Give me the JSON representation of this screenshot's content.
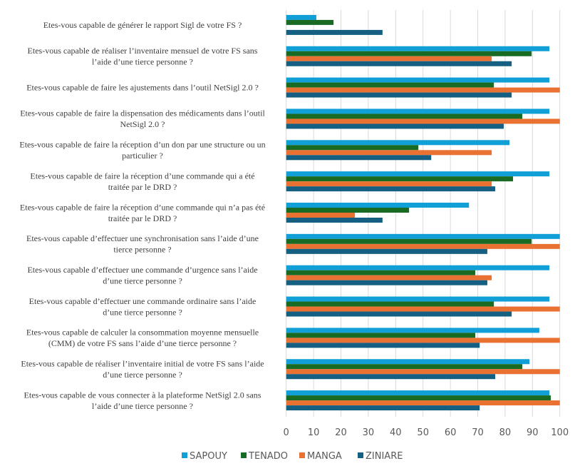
{
  "chart_data": {
    "type": "bar",
    "orientation": "horizontal",
    "title": "",
    "xlabel": "",
    "ylabel": "",
    "xlim": [
      0,
      100
    ],
    "xticks": [
      0,
      10,
      20,
      30,
      40,
      50,
      60,
      70,
      80,
      90,
      100
    ],
    "grid": true,
    "legend_position": "bottom",
    "categories": [
      [
        "Etes-vous capable de générer le rapport Sigl de votre FS ?"
      ],
      [
        "Etes-vous capable de réaliser l’inventaire mensuel de votre FS sans",
        "l’aide d’une tierce personne ?"
      ],
      [
        "Etes-vous capable de faire les ajustements dans l’outil NetSigl 2.0 ?"
      ],
      [
        "Etes-vous capable de faire la dispensation des médicaments dans l’outil",
        "NetSigl 2.0 ?"
      ],
      [
        "Etes-vous capable de faire la réception d’un don par une structure ou un",
        "particulier ?"
      ],
      [
        "Etes-vous capable de faire la réception d’une commande qui a été",
        "traitée par le DRD ?"
      ],
      [
        "Etes-vous capable de faire la réception d’une commande qui n’a pas été",
        "traitée par le DRD ?"
      ],
      [
        "Etes-vous capable d’effectuer une synchronisation sans l’aide d’une",
        "tierce personne ?"
      ],
      [
        "Etes-vous capable d’effectuer une commande d’urgence sans l’aide",
        "d’une tierce personne ?"
      ],
      [
        "Etes-vous capable d’effectuer une commande ordinaire sans l’aide",
        "d’une tierce personne ?"
      ],
      [
        "Etes-vous capable de calculer la consommation moyenne mensuelle",
        "(CMM) de votre FS sans l’aide d’une tierce personne ?"
      ],
      [
        "Etes-vous capable de réaliser l’inventaire initial de votre FS sans l’aide",
        "d’une tierce personne ?"
      ],
      [
        "Etes-vous capable de vous connecter à la plateforme NetSigl 2.0 sans",
        "l’aide d’une tierce personne ?"
      ]
    ],
    "series": [
      {
        "name": "SAPOUY",
        "color": "#119fd7",
        "values": [
          11.0,
          96.2,
          96.2,
          96.2,
          81.6,
          96.2,
          66.8,
          100,
          96.2,
          96.2,
          92.5,
          88.9,
          96.2
        ]
      },
      {
        "name": "TENADO",
        "color": "#196b24",
        "values": [
          17.3,
          89.7,
          75.9,
          86.3,
          48.3,
          82.9,
          44.9,
          89.7,
          69.1,
          75.9,
          69.1,
          86.3,
          96.7
        ]
      },
      {
        "name": "MANGA",
        "color": "#e97132",
        "values": [
          0,
          75.1,
          100,
          100,
          75.1,
          75.1,
          25.1,
          100,
          75.1,
          100,
          100,
          100,
          100
        ]
      },
      {
        "name": "ZINIARE",
        "color": "#156082",
        "values": [
          35.2,
          82.4,
          82.4,
          79.5,
          53.0,
          76.4,
          35.2,
          73.5,
          73.5,
          82.4,
          70.7,
          76.4,
          70.7
        ]
      }
    ]
  }
}
